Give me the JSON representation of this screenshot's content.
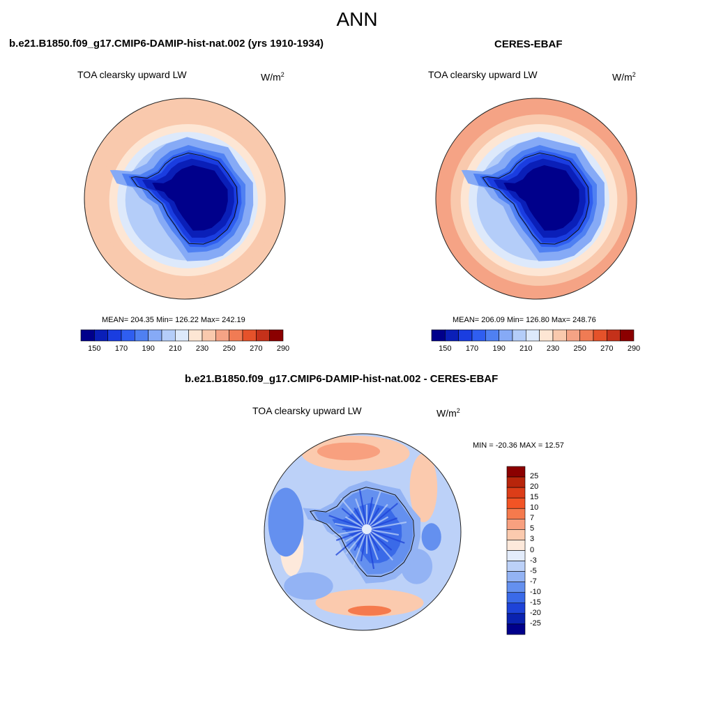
{
  "main_title": "ANN",
  "panels": [
    {
      "case_title": "b.e21.B1850.f09_g17.CMIP6-DAMIP-hist-nat.002 (yrs 1910-1934)",
      "variable": "TOA clearsky upward LW",
      "units": "W/m",
      "units_exp": "2",
      "stats": "MEAN= 204.35  Min= 126.22  Max= 242.19",
      "colorbar_ticks": [
        "150",
        "170",
        "190",
        "210",
        "230",
        "250",
        "270",
        "290"
      ]
    },
    {
      "case_title": "CERES-EBAF",
      "variable": "TOA clearsky upward LW",
      "units": "W/m",
      "units_exp": "2",
      "stats": "MEAN= 206.09  Min= 126.80  Max= 248.76",
      "colorbar_ticks": [
        "150",
        "170",
        "190",
        "210",
        "230",
        "250",
        "270",
        "290"
      ]
    },
    {
      "case_title": "b.e21.B1850.f09_g17.CMIP6-DAMIP-hist-nat.002 - CERES-EBAF",
      "variable": "TOA clearsky upward LW",
      "units": "W/m",
      "units_exp": "2",
      "stats": "MIN = -20.36 MAX =  12.57",
      "colorbar_ticks": [
        "25",
        "20",
        "15",
        "10",
        "7",
        "5",
        "3",
        "0",
        "-3",
        "-5",
        "-7",
        "-10",
        "-15",
        "-20",
        "-25"
      ]
    }
  ],
  "colors": {
    "abs_scale": [
      "#00008b",
      "#0a1fb8",
      "#1a3de0",
      "#2f5ef0",
      "#4f80f2",
      "#86aaf6",
      "#b4cdf9",
      "#dde9fb",
      "#fde6d4",
      "#f9c9ad",
      "#f5a385",
      "#f07b54",
      "#e5522a",
      "#c4311a",
      "#8b0000"
    ],
    "diff_scale": [
      "#8b0000",
      "#b8250b",
      "#dc3d18",
      "#f25425",
      "#f57a4d",
      "#f8a07f",
      "#fbcaae",
      "#fde9db",
      "#e3ecfb",
      "#bcd1f8",
      "#93b3f4",
      "#6490ef",
      "#3a6ae8",
      "#1e43d8",
      "#0a22b0",
      "#00008b"
    ]
  },
  "chart_data": [
    {
      "type": "heatmap",
      "title": "b.e21.B1850.f09_g17.CMIP6-DAMIP-hist-nat.002 (yrs 1910-1934)",
      "field": "TOA clearsky upward LW",
      "units": "W/m^2",
      "projection": "south polar stereographic",
      "mean": 204.35,
      "min": 126.22,
      "max": 242.19,
      "levels": [
        150,
        160,
        170,
        180,
        190,
        200,
        210,
        220,
        230,
        240,
        250,
        260,
        270,
        280,
        290
      ],
      "zones": [
        {
          "region": "Antarctic plateau",
          "approx_value": 135
        },
        {
          "region": "Antarctic coast",
          "approx_value": 165
        },
        {
          "region": "Southern Ocean sea-ice zone",
          "approx_value": 200
        },
        {
          "region": "Mid-latitude ocean",
          "approx_value": 225
        },
        {
          "region": "Outer rim",
          "approx_value": 240
        }
      ]
    },
    {
      "type": "heatmap",
      "title": "CERES-EBAF",
      "field": "TOA clearsky upward LW",
      "units": "W/m^2",
      "projection": "south polar stereographic",
      "mean": 206.09,
      "min": 126.8,
      "max": 248.76,
      "levels": [
        150,
        160,
        170,
        180,
        190,
        200,
        210,
        220,
        230,
        240,
        250,
        260,
        270,
        280,
        290
      ],
      "zones": [
        {
          "region": "Antarctic plateau",
          "approx_value": 135
        },
        {
          "region": "Antarctic coast",
          "approx_value": 165
        },
        {
          "region": "Southern Ocean sea-ice zone",
          "approx_value": 200
        },
        {
          "region": "Mid-latitude ocean",
          "approx_value": 228
        },
        {
          "region": "Outer rim",
          "approx_value": 248
        }
      ]
    },
    {
      "type": "heatmap",
      "title": "b.e21.B1850.f09_g17.CMIP6-DAMIP-hist-nat.002 - CERES-EBAF",
      "field": "TOA clearsky upward LW",
      "units": "W/m^2",
      "projection": "south polar stereographic",
      "min": -20.36,
      "max": 12.57,
      "levels": [
        -25,
        -20,
        -15,
        -10,
        -7,
        -5,
        -3,
        0,
        3,
        5,
        7,
        10,
        15,
        20,
        25
      ],
      "zones": [
        {
          "region": "Antarctic interior",
          "approx_value": -10
        },
        {
          "region": "Southern Ocean",
          "approx_value": -4
        },
        {
          "region": "Mid-latitude bands",
          "approx_value": 4
        }
      ]
    }
  ]
}
